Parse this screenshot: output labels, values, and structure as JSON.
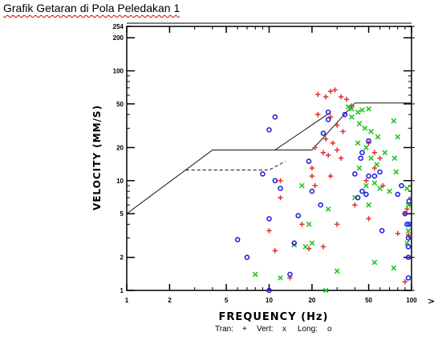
{
  "document": {
    "title": "Grafik Getaran di Pola Peledakan 1"
  },
  "chart_data": {
    "type": "scatter",
    "title": "",
    "xlabel": "FREQUENCY (Hz)",
    "ylabel": "VELOCITY (MM/S)",
    "x_scale": "log",
    "y_scale": "log",
    "xlim": [
      1,
      100
    ],
    "ylim": [
      1,
      254
    ],
    "x_ticks": [
      1,
      2,
      5,
      10,
      20,
      50,
      100
    ],
    "x_tick_labels": [
      "1",
      "2",
      "5",
      "10",
      "20",
      "50",
      "100"
    ],
    "x_arrow_label": ">",
    "y_ticks": [
      1,
      2,
      5,
      10,
      20,
      50,
      100,
      200,
      254
    ],
    "y_tick_labels": [
      "1",
      "2",
      "5",
      "10",
      "20",
      "50",
      "100",
      "200",
      "254"
    ],
    "grid": false,
    "legend_position": "bottom-center",
    "colors": {
      "tran": "#e03030",
      "vert": "#22c422",
      "long": "#2222dd",
      "frame": "#000000"
    },
    "limit_lines": [
      {
        "name": "",
        "style": "solid",
        "points": [
          [
            1,
            5
          ],
          [
            4,
            19
          ],
          [
            20,
            19
          ],
          [
            40,
            51
          ],
          [
            100,
            51
          ]
        ]
      },
      {
        "name": "",
        "style": "solid",
        "points": [
          [
            4,
            19
          ],
          [
            11,
            19
          ],
          [
            27,
            42
          ]
        ]
      },
      {
        "name": "",
        "style": "dashed",
        "points": [
          [
            2.6,
            12.5
          ],
          [
            10,
            12.5
          ],
          [
            13,
            15
          ]
        ]
      }
    ],
    "series": [
      {
        "name": "Tran",
        "marker": "+",
        "points": [
          [
            22,
            61
          ],
          [
            25,
            58
          ],
          [
            27,
            65
          ],
          [
            29,
            67
          ],
          [
            32,
            58
          ],
          [
            35,
            55
          ],
          [
            38,
            48
          ],
          [
            22,
            40
          ],
          [
            27,
            38
          ],
          [
            30,
            32
          ],
          [
            33,
            28
          ],
          [
            25,
            24
          ],
          [
            21,
            20
          ],
          [
            24,
            18
          ],
          [
            26,
            17
          ],
          [
            30,
            19
          ],
          [
            28,
            22
          ],
          [
            32,
            16
          ],
          [
            20,
            13
          ],
          [
            20,
            11
          ],
          [
            21,
            9
          ],
          [
            27,
            11
          ],
          [
            48,
            10
          ],
          [
            55,
            13
          ],
          [
            60,
            16
          ],
          [
            50,
            22
          ],
          [
            55,
            18
          ],
          [
            12,
            10
          ],
          [
            12,
            7
          ],
          [
            10,
            3.5
          ],
          [
            11,
            2.3
          ],
          [
            14,
            1.3
          ],
          [
            19,
            2.4
          ],
          [
            24,
            2.5
          ],
          [
            30,
            4
          ],
          [
            40,
            6
          ],
          [
            50,
            4.5
          ],
          [
            63,
            9
          ],
          [
            80,
            3.3
          ],
          [
            90,
            5
          ],
          [
            93,
            5.5
          ],
          [
            95,
            3.2
          ],
          [
            90,
            1.2
          ],
          [
            17,
            4
          ]
        ]
      },
      {
        "name": "Vert",
        "marker": "x",
        "points": [
          [
            36,
            47
          ],
          [
            38,
            45
          ],
          [
            42,
            42
          ],
          [
            45,
            44
          ],
          [
            50,
            45
          ],
          [
            38,
            38
          ],
          [
            43,
            33
          ],
          [
            47,
            30
          ],
          [
            52,
            28
          ],
          [
            58,
            25
          ],
          [
            42,
            22
          ],
          [
            48,
            20
          ],
          [
            52,
            16
          ],
          [
            57,
            14
          ],
          [
            65,
            18
          ],
          [
            75,
            35
          ],
          [
            80,
            25
          ],
          [
            76,
            16
          ],
          [
            43,
            13
          ],
          [
            48,
            9
          ],
          [
            55,
            9.5
          ],
          [
            60,
            8.5
          ],
          [
            70,
            8
          ],
          [
            40,
            7
          ],
          [
            50,
            6
          ],
          [
            78,
            12
          ],
          [
            93,
            8.5
          ],
          [
            95,
            6
          ],
          [
            17,
            9
          ],
          [
            26,
            5.5
          ],
          [
            19,
            4
          ],
          [
            20,
            2.7
          ],
          [
            18,
            2.5
          ],
          [
            15,
            2.6
          ],
          [
            12,
            1.3
          ],
          [
            8,
            1.4
          ],
          [
            25,
            1
          ],
          [
            30,
            1.5
          ],
          [
            55,
            1.8
          ],
          [
            75,
            1.6
          ],
          [
            93,
            2.7
          ],
          [
            95,
            3.5
          ]
        ]
      },
      {
        "name": "Long",
        "marker": "o",
        "points": [
          [
            9,
            11.5
          ],
          [
            10,
            29
          ],
          [
            11,
            38
          ],
          [
            11,
            10
          ],
          [
            12,
            8.5
          ],
          [
            10,
            4.5
          ],
          [
            10,
            1
          ],
          [
            6,
            2.9
          ],
          [
            7,
            2
          ],
          [
            14,
            1.4
          ],
          [
            15,
            2.7
          ],
          [
            16,
            4.8
          ],
          [
            19,
            15
          ],
          [
            20,
            8
          ],
          [
            23,
            6
          ],
          [
            24,
            27
          ],
          [
            26,
            36
          ],
          [
            26,
            42
          ],
          [
            34,
            40
          ],
          [
            40,
            11.5
          ],
          [
            42,
            7
          ],
          [
            45,
            8
          ],
          [
            48,
            7.5
          ],
          [
            50,
            23
          ],
          [
            45,
            18
          ],
          [
            44,
            16
          ],
          [
            50,
            11
          ],
          [
            55,
            11
          ],
          [
            60,
            12
          ],
          [
            62,
            3.5
          ],
          [
            80,
            7.5
          ],
          [
            85,
            9
          ],
          [
            90,
            5
          ],
          [
            93,
            4
          ],
          [
            95,
            1.3
          ],
          [
            95,
            2
          ],
          [
            95,
            3
          ],
          [
            96,
            4
          ],
          [
            96,
            6.5
          ],
          [
            95,
            2.5
          ]
        ]
      }
    ]
  },
  "legend": {
    "tran_label": "Tran:",
    "tran_marker": "+",
    "vert_label": "Vert:",
    "vert_marker": "x",
    "long_label": "Long:",
    "long_marker": "o"
  }
}
